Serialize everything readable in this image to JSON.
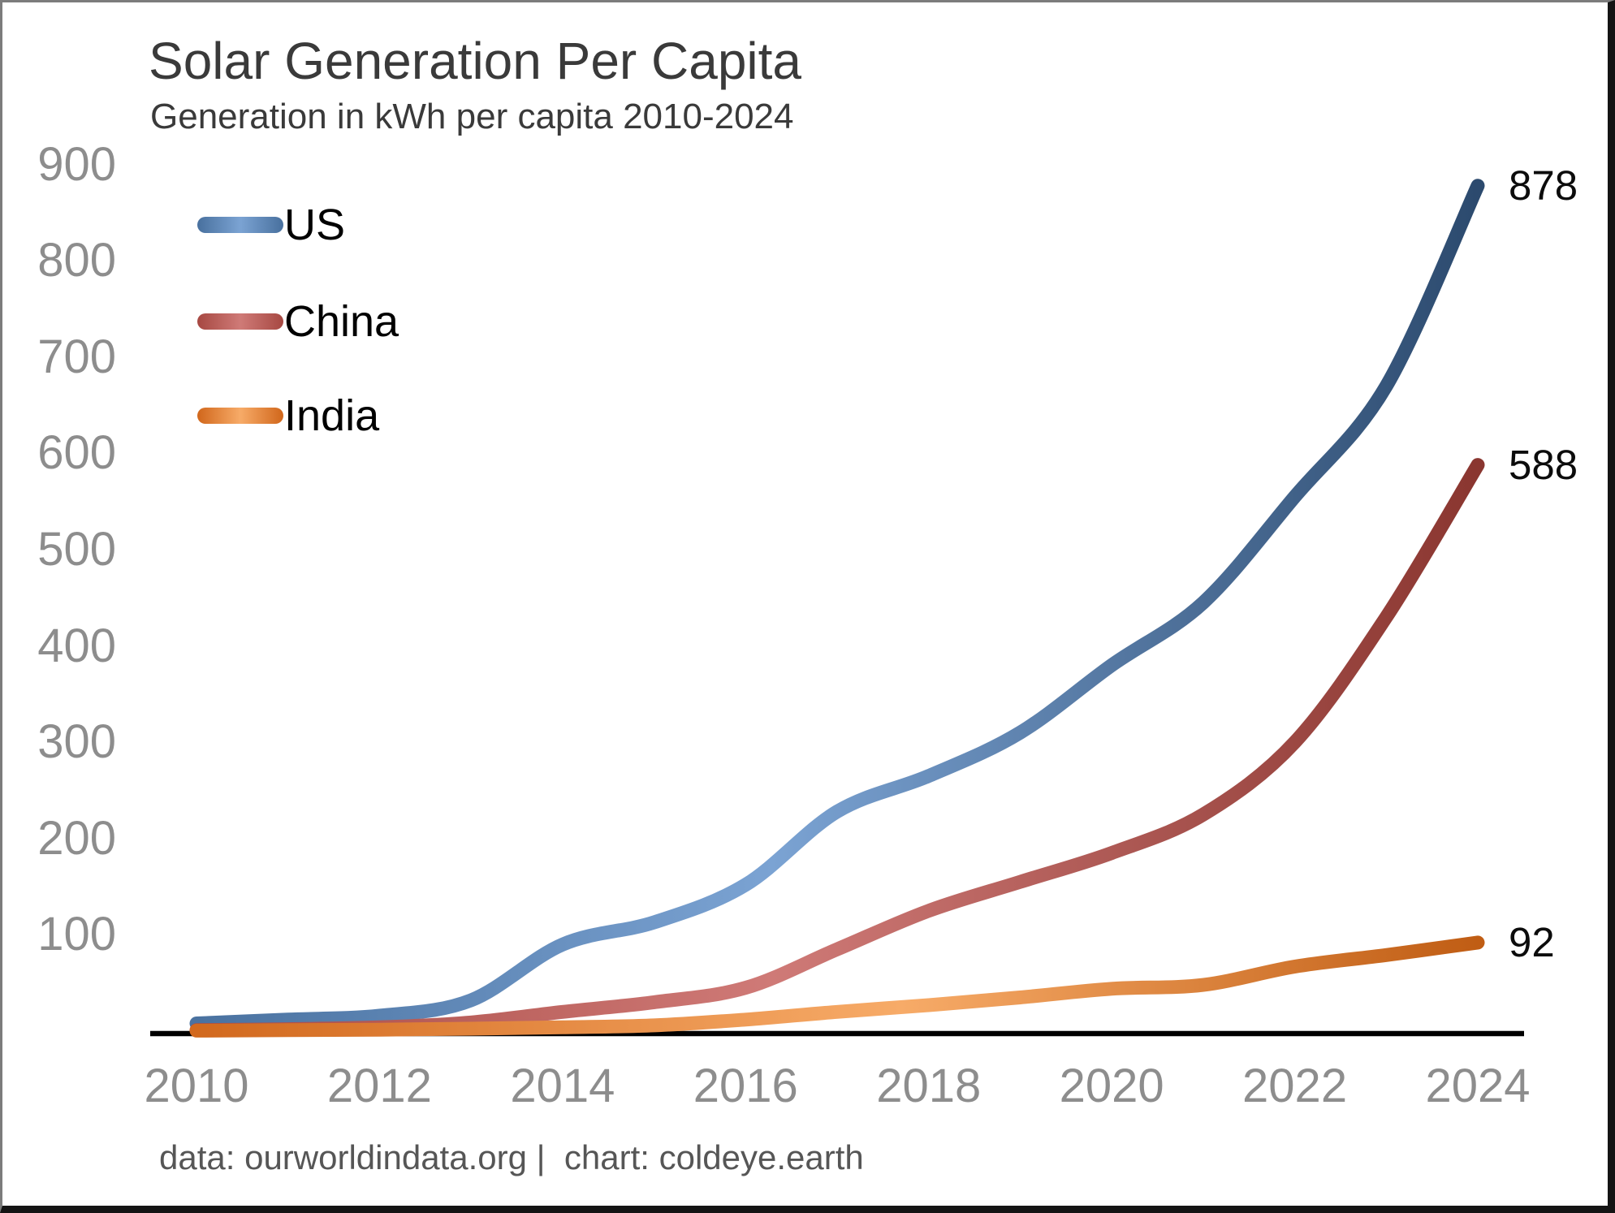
{
  "title": "Solar Generation Per Capita",
  "subtitle": "Generation in kWh per capita 2010-2024",
  "footer": "data: ourworldindata.org |  chart: coldeye.earth",
  "style": {
    "background": "#ffffff",
    "title_color": "#3a3a3a",
    "tick_color": "#8d8d8d",
    "end_label_color": "#0c0c0c",
    "axis_line_color": "#000000",
    "footer_color": "#565656"
  },
  "chart_data": {
    "type": "line",
    "title": "Solar Generation Per Capita",
    "subtitle": "Generation in kWh per capita 2010-2024",
    "xlabel": "",
    "ylabel": "",
    "x": [
      2010,
      2011,
      2012,
      2013,
      2014,
      2015,
      2016,
      2017,
      2018,
      2019,
      2020,
      2021,
      2022,
      2023,
      2024
    ],
    "x_ticks": [
      2010,
      2012,
      2014,
      2016,
      2018,
      2020,
      2022,
      2024
    ],
    "y_ticks": [
      900,
      800,
      700,
      600,
      500,
      400,
      300,
      200,
      100
    ],
    "xlim": [
      2010,
      2024
    ],
    "ylim": [
      0,
      940
    ],
    "grid": false,
    "legend_position": "upper-left-inside",
    "series": [
      {
        "name": "US",
        "end_label": "878",
        "values": [
          8,
          12,
          16,
          32,
          90,
          113,
          152,
          228,
          265,
          310,
          380,
          445,
          555,
          670,
          878
        ],
        "gradient": {
          "start": "#4a72a0",
          "mid": "#7ba3d3",
          "end": "#2c4a6e",
          "mid_pos": 0.45
        }
      },
      {
        "name": "China",
        "end_label": "588",
        "values": [
          1,
          2,
          4,
          9,
          20,
          30,
          45,
          85,
          125,
          155,
          185,
          225,
          300,
          430,
          588
        ],
        "gradient": {
          "start": "#a84a44",
          "mid": "#cf7a77",
          "end": "#8a3630",
          "mid_pos": 0.45
        }
      },
      {
        "name": "India",
        "end_label": "92",
        "values": [
          0.5,
          1,
          1.5,
          2.5,
          4,
          6,
          12,
          20,
          27,
          35,
          44,
          48,
          67,
          79,
          92
        ],
        "gradient": {
          "start": "#d2691e",
          "mid": "#f7ab68",
          "end": "#c05d14",
          "mid_pos": 0.55
        }
      }
    ]
  }
}
